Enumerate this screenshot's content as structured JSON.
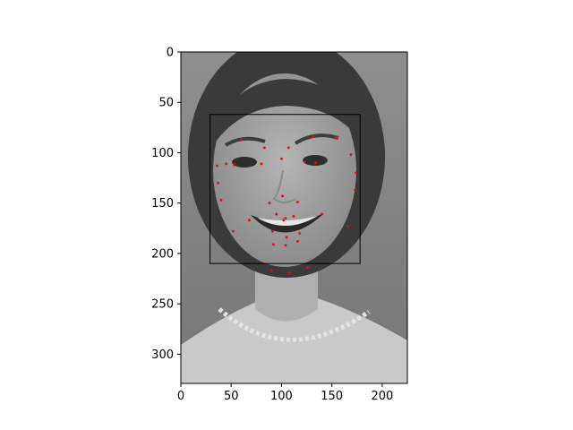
{
  "chart_data": {
    "type": "scatter",
    "image_kind": "grayscale-portrait-photo",
    "xlim": [
      0,
      225
    ],
    "ylim": [
      329,
      0
    ],
    "x_ticks": [
      0,
      50,
      100,
      150,
      200
    ],
    "y_ticks": [
      0,
      50,
      100,
      150,
      200,
      250,
      300
    ],
    "x_tick_labels": [
      "0",
      "50",
      "100",
      "150",
      "200"
    ],
    "y_tick_labels": [
      "0",
      "50",
      "100",
      "150",
      "200",
      "250",
      "300"
    ],
    "grid": false,
    "bounding_box": {
      "x_min": 29,
      "y_min": 62,
      "x_max": 178,
      "y_max": 210,
      "color": "#000000"
    },
    "landmark_color": "#ff0000",
    "landmarks": [
      {
        "x": 60,
        "y": 87
      },
      {
        "x": 83,
        "y": 95
      },
      {
        "x": 107,
        "y": 95
      },
      {
        "x": 131,
        "y": 84
      },
      {
        "x": 155,
        "y": 85
      },
      {
        "x": 45,
        "y": 111
      },
      {
        "x": 53,
        "y": 112
      },
      {
        "x": 80,
        "y": 111
      },
      {
        "x": 123,
        "y": 109
      },
      {
        "x": 134,
        "y": 110
      },
      {
        "x": 100,
        "y": 106
      },
      {
        "x": 169,
        "y": 102
      },
      {
        "x": 36,
        "y": 113
      },
      {
        "x": 37,
        "y": 130
      },
      {
        "x": 40,
        "y": 147
      },
      {
        "x": 52,
        "y": 178
      },
      {
        "x": 174,
        "y": 120
      },
      {
        "x": 173,
        "y": 137
      },
      {
        "x": 166,
        "y": 173
      },
      {
        "x": 88,
        "y": 150
      },
      {
        "x": 101,
        "y": 143
      },
      {
        "x": 116,
        "y": 149
      },
      {
        "x": 68,
        "y": 167
      },
      {
        "x": 95,
        "y": 161
      },
      {
        "x": 104,
        "y": 165
      },
      {
        "x": 112,
        "y": 163
      },
      {
        "x": 140,
        "y": 161
      },
      {
        "x": 102,
        "y": 167
      },
      {
        "x": 91,
        "y": 178
      },
      {
        "x": 105,
        "y": 184
      },
      {
        "x": 118,
        "y": 180
      },
      {
        "x": 92,
        "y": 191
      },
      {
        "x": 104,
        "y": 192
      },
      {
        "x": 116,
        "y": 188
      },
      {
        "x": 90,
        "y": 217
      },
      {
        "x": 108,
        "y": 219
      },
      {
        "x": 126,
        "y": 214
      }
    ]
  }
}
